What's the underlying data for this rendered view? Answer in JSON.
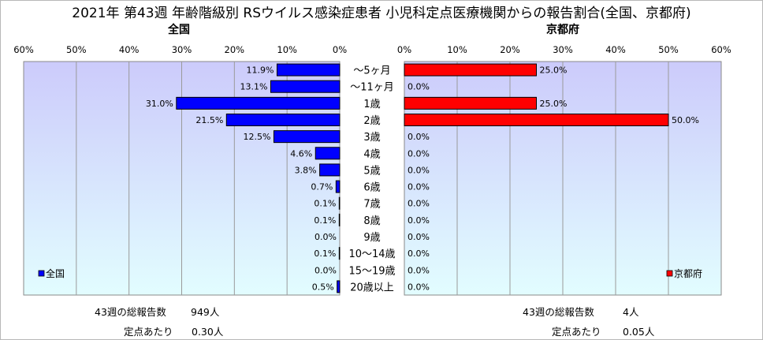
{
  "title": "2021年 第43週 年齢階級別 RSウイルス感染症患者 小児科定点医療機関からの報告割合(全国、京都府)",
  "chart_data": {
    "type": "bar",
    "categories": [
      "～5ヶ月",
      "～11ヶ月",
      "1歳",
      "2歳",
      "3歳",
      "4歳",
      "5歳",
      "6歳",
      "7歳",
      "8歳",
      "9歳",
      "10～14歳",
      "15～19歳",
      "20歳以上"
    ],
    "axis_ticks": [
      "60%",
      "50%",
      "40%",
      "30%",
      "20%",
      "10%",
      "0%"
    ],
    "axis_ticks_right": [
      "0%",
      "10%",
      "20%",
      "30%",
      "40%",
      "50%",
      "60%"
    ],
    "xlim": [
      0,
      60
    ],
    "series": [
      {
        "name": "全国",
        "panel_title": "全国",
        "legend": "全国",
        "color": "#0000ff",
        "values": [
          11.9,
          13.1,
          31.0,
          21.5,
          12.5,
          4.6,
          3.8,
          0.7,
          0.1,
          0.1,
          0.0,
          0.1,
          0.0,
          0.5
        ],
        "labels": [
          "11.9%",
          "13.1%",
          "31.0%",
          "21.5%",
          "12.5%",
          "4.6%",
          "3.8%",
          "0.7%",
          "0.1%",
          "0.1%",
          "0.0%",
          "0.1%",
          "0.0%",
          "0.5%"
        ]
      },
      {
        "name": "京都府",
        "panel_title": "京都府",
        "legend": "京都府",
        "color": "#ff0000",
        "values": [
          25.0,
          0.0,
          25.0,
          50.0,
          0.0,
          0.0,
          0.0,
          0.0,
          0.0,
          0.0,
          0.0,
          0.0,
          0.0,
          0.0
        ],
        "labels": [
          "25.0%",
          "0.0%",
          "25.0%",
          "50.0%",
          "0.0%",
          "0.0%",
          "0.0%",
          "0.0%",
          "0.0%",
          "0.0%",
          "0.0%",
          "0.0%",
          "0.0%",
          "0.0%"
        ]
      }
    ],
    "plot_background": "#c8c8ff",
    "grid": true,
    "legend_position": "bottom-left / bottom-right"
  },
  "summary": {
    "national": {
      "reports_label": "43週の総報告数",
      "reports_value": "949人",
      "per_site_label": "定点あたり",
      "per_site_value": "0.30人"
    },
    "kyoto": {
      "reports_label": "43週の総報告数",
      "reports_value": "4人",
      "per_site_label": "定点あたり",
      "per_site_value": "0.05人"
    }
  }
}
